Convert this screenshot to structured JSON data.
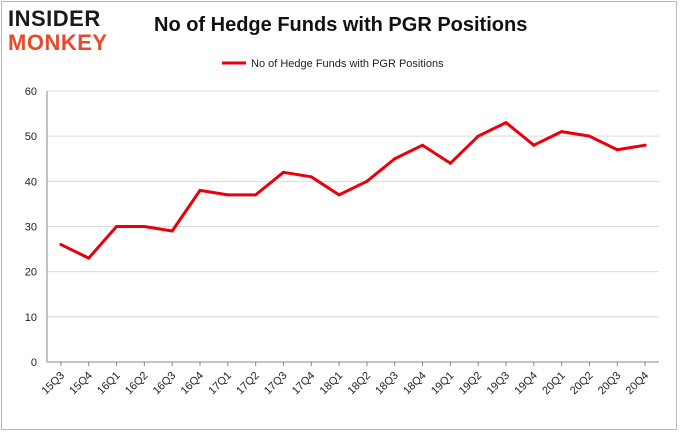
{
  "logo": {
    "line1": "INSIDER",
    "line2": "MONKEY"
  },
  "colors": {
    "series": "#e8000b",
    "grid": "#d9d9d9",
    "axis": "#888888",
    "logo_accent": "#e8492c"
  },
  "chart_data": {
    "type": "line",
    "title": "No of Hedge Funds with PGR Positions",
    "xlabel": "",
    "ylabel": "",
    "ylim": [
      0,
      60
    ],
    "yticks": [
      0,
      10,
      20,
      30,
      40,
      50,
      60
    ],
    "grid": true,
    "legend": "top-center",
    "categories": [
      "15Q3",
      "15Q4",
      "16Q1",
      "16Q2",
      "16Q3",
      "16Q4",
      "17Q1",
      "17Q2",
      "17Q3",
      "17Q4",
      "18Q1",
      "18Q2",
      "18Q3",
      "18Q4",
      "19Q1",
      "19Q2",
      "19Q3",
      "19Q4",
      "20Q1",
      "20Q2",
      "20Q3",
      "20Q4"
    ],
    "series": [
      {
        "name": "No of Hedge Funds with PGR Positions",
        "values": [
          26,
          23,
          30,
          30,
          29,
          38,
          37,
          37,
          42,
          41,
          37,
          40,
          45,
          48,
          44,
          50,
          53,
          48,
          51,
          50,
          47,
          48
        ]
      }
    ]
  }
}
